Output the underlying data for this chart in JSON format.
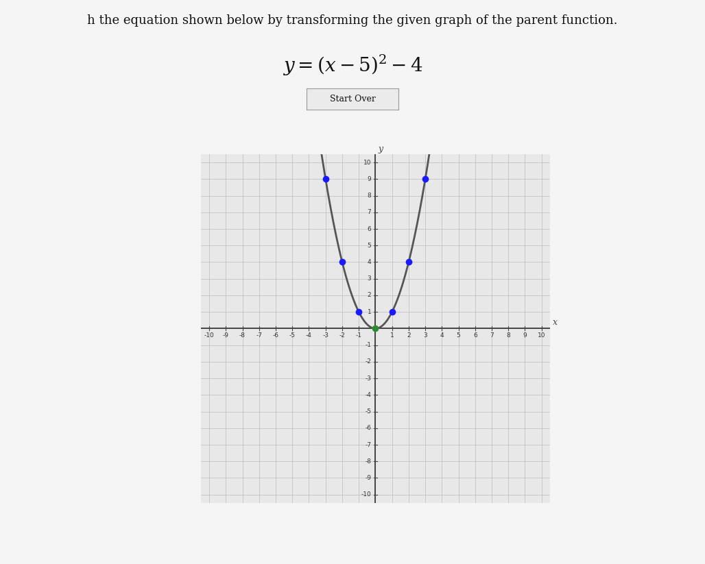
{
  "title_text": "h the equation shown below by transforming the given graph of the parent function.",
  "equation_latex": "$y = (x - 5)^2 - 4$",
  "button_text": "Start Over",
  "page_bg": "#f5f5f5",
  "graph_bg": "#e8e8e8",
  "grid_color": "#bbbbbb",
  "axis_color": "#444444",
  "curve_color": "#555555",
  "vertex_color": "#2d8a2d",
  "dot_color": "#1a1aff",
  "xlim": [
    -10.5,
    10.5
  ],
  "ylim": [
    -10.5,
    10.5
  ],
  "blue_dots": [
    [
      -3,
      9
    ],
    [
      -2,
      4
    ],
    [
      -1,
      1
    ],
    [
      1,
      1
    ],
    [
      2,
      4
    ],
    [
      3,
      9
    ]
  ],
  "green_dot": [
    0,
    0
  ],
  "curve_x_min": -3.35,
  "curve_x_max": 3.35,
  "tick_fontsize": 6.5,
  "title_fontsize": 13,
  "eq_fontsize": 20
}
